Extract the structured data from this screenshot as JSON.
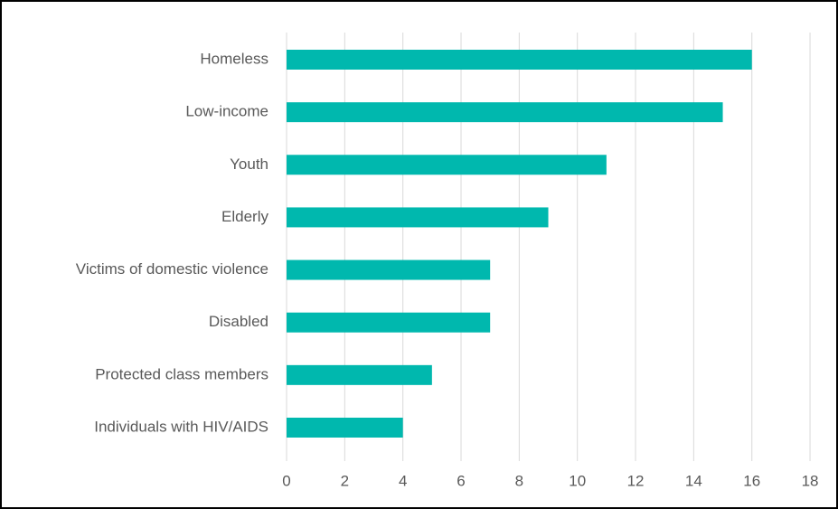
{
  "chart_data": {
    "type": "bar",
    "orientation": "horizontal",
    "title": "",
    "xlabel": "",
    "ylabel": "",
    "categories": [
      "Homeless",
      "Low-income",
      "Youth",
      "Elderly",
      "Victims of domestic violence",
      "Disabled",
      "Protected class members",
      "Individuals with HIV/AIDS"
    ],
    "values": [
      16,
      15,
      11,
      9,
      7,
      7,
      5,
      4
    ],
    "xlim": [
      0,
      18
    ],
    "xticks": [
      "0",
      "2",
      "4",
      "6",
      "8",
      "10",
      "12",
      "14",
      "16",
      "18"
    ],
    "grid": "vertical",
    "legend": "none",
    "bar_color": "#00B8AE",
    "gridline_color": "#D9D9D9",
    "text_color": "#595959"
  }
}
